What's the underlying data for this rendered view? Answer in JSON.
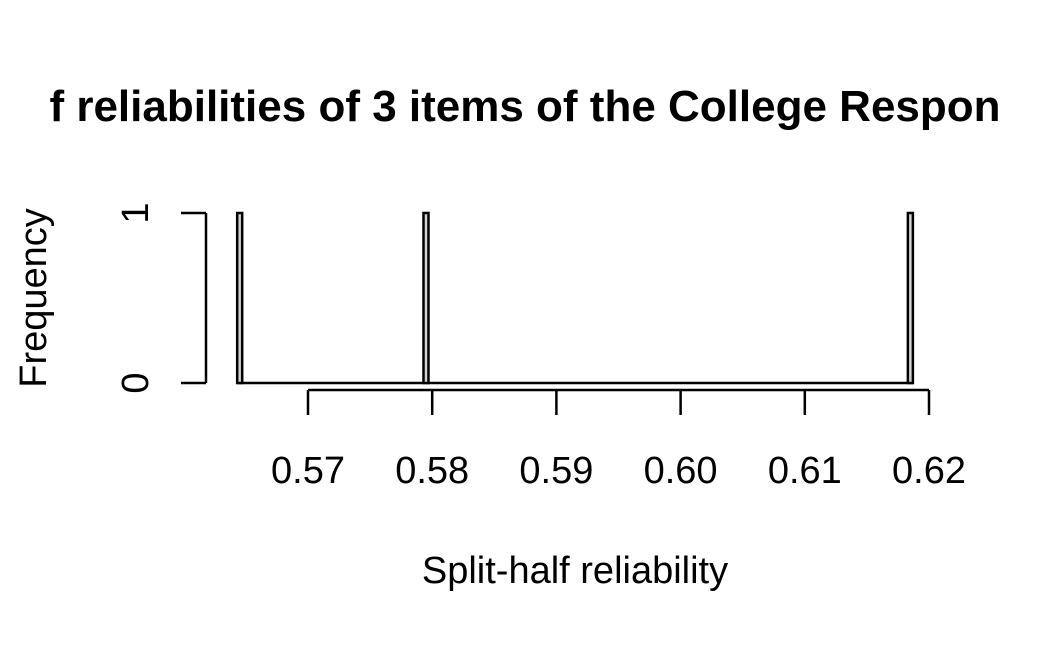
{
  "chart_data": {
    "type": "bar",
    "title": "f reliabilities of 3 items of the College Respon",
    "xlabel": "Split-half reliability",
    "ylabel": "Frequency",
    "x_ticks": [
      "0.57",
      "0.58",
      "0.59",
      "0.60",
      "0.61",
      "0.62"
    ],
    "y_ticks": [
      "0",
      "1"
    ],
    "xlim": [
      0.57,
      0.62
    ],
    "ylim": [
      0,
      1
    ],
    "bins": [
      {
        "x": 0.5645,
        "count": 1
      },
      {
        "x": 0.5795,
        "count": 1
      },
      {
        "x": 0.6185,
        "count": 1
      }
    ],
    "colors": {
      "bar_fill": "#d3d3d3",
      "bar_stroke": "#000000"
    }
  }
}
